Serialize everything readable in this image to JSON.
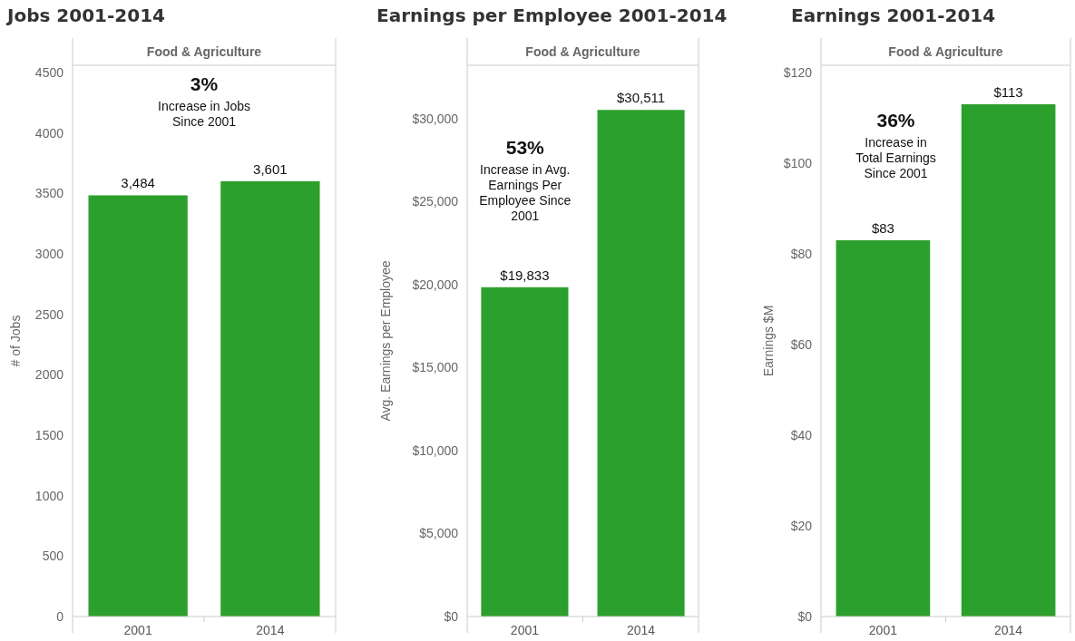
{
  "chart_data": [
    {
      "type": "bar",
      "title": "Jobs 2001-2014",
      "subtitle": "Food & Agriculture",
      "ylabel": "# of Jobs",
      "categories": [
        "2001",
        "2014"
      ],
      "values": [
        3484,
        3601
      ],
      "value_labels": [
        "3,484",
        "3,601"
      ],
      "color": "#2ca02c",
      "ylim": [
        0,
        4560
      ],
      "yticks": [
        0,
        500,
        1000,
        1500,
        2000,
        2500,
        3000,
        3500,
        4000,
        4500
      ],
      "annotations": [
        "3%",
        "Increase in Jobs Since 2001"
      ]
    },
    {
      "type": "bar",
      "title": "Earnings per Employee 2001-2014",
      "subtitle": "Food & Agriculture",
      "ylabel": "Avg. Earnings per Employee",
      "categories": [
        "2001",
        "2014"
      ],
      "values": [
        19833,
        30511
      ],
      "value_labels": [
        "$19,833",
        "$30,511"
      ],
      "color": "#2ca02c",
      "ylim": [
        0,
        33200
      ],
      "yticks": [
        {
          "value": 0,
          "label": "$0"
        },
        {
          "value": 5000,
          "label": "$5,000"
        },
        {
          "value": 10000,
          "label": "$10,000"
        },
        {
          "value": 15000,
          "label": "$15,000"
        },
        {
          "value": 20000,
          "label": "$20,000"
        },
        {
          "value": 25000,
          "label": "$25,000"
        },
        {
          "value": 30000,
          "label": "$30,000"
        }
      ],
      "annotations": [
        "53%",
        "Increase in Avg. Earnings Per Employee Since 2001"
      ]
    },
    {
      "type": "bar",
      "title": "Earnings 2001-2014",
      "subtitle": "Food & Agriculture",
      "ylabel": "Earnings $M",
      "categories": [
        "2001",
        "2014"
      ],
      "values": [
        83,
        113
      ],
      "value_labels": [
        "$83",
        "$113"
      ],
      "color": "#2ca02c",
      "ylim": [
        0,
        121.6
      ],
      "yticks": [
        {
          "value": 0,
          "label": "$0"
        },
        {
          "value": 20,
          "label": "$20"
        },
        {
          "value": 40,
          "label": "$40"
        },
        {
          "value": 60,
          "label": "$60"
        },
        {
          "value": 80,
          "label": "$80"
        },
        {
          "value": 100,
          "label": "$100"
        },
        {
          "value": 120,
          "label": "$120"
        }
      ],
      "annotations": [
        "36%",
        "Increase in Total Earnings Since 2001"
      ]
    }
  ]
}
